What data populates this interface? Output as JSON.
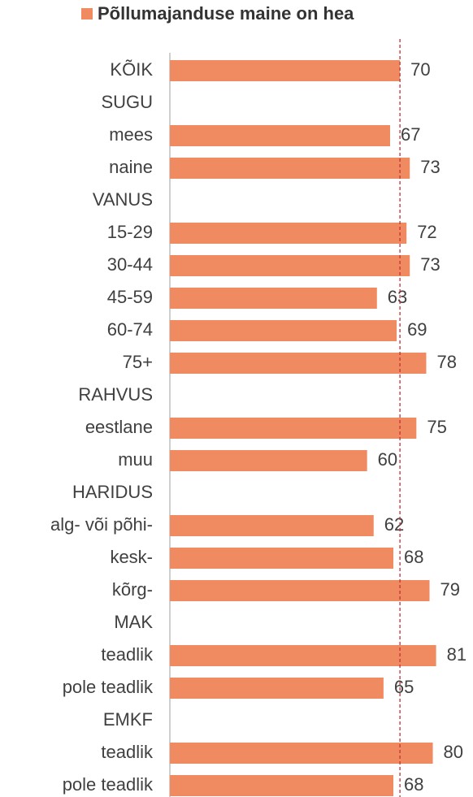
{
  "chart_data": {
    "type": "barh",
    "categories": [
      "KÕIK",
      "SUGU",
      "mees",
      "naine",
      "VANUS",
      "15-29",
      "30-44",
      "45-59",
      "60-74",
      "75+",
      "RAHVUS",
      "eestlane",
      "muu",
      "HARIDUS",
      "alg- või põhi-",
      "kesk-",
      "kõrg-",
      "MAK",
      "teadlik",
      "pole teadlik",
      "EMKF",
      "teadlik",
      "pole teadlik"
    ],
    "series": [
      {
        "name": "Põllumajanduse maine on hea",
        "color": "#f08a60",
        "values": [
          70,
          null,
          67,
          73,
          null,
          72,
          73,
          63,
          69,
          78,
          null,
          75,
          60,
          null,
          62,
          68,
          79,
          null,
          81,
          65,
          null,
          80,
          68
        ]
      }
    ],
    "xlim": [
      0,
      90
    ],
    "reference_line": {
      "value": 70,
      "color": "#c0303a"
    }
  }
}
